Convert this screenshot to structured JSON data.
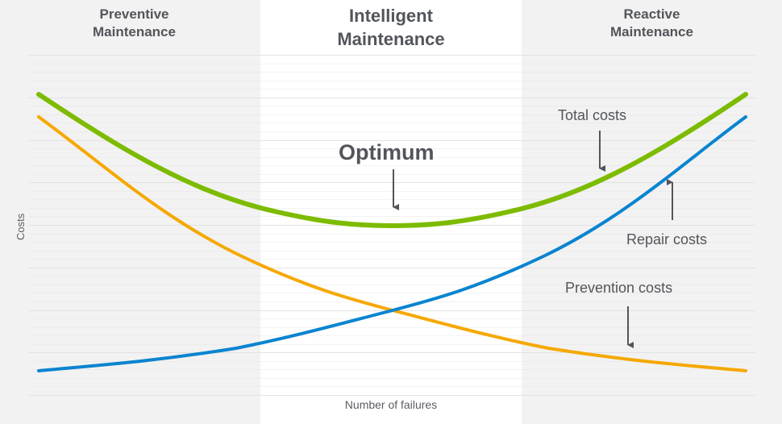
{
  "zones": [
    {
      "id": "preventive",
      "title_line1": "Preventive",
      "title_line2": "Maintenance"
    },
    {
      "id": "intelligent",
      "title_line1": "Intelligent",
      "title_line2": "Maintenance"
    },
    {
      "id": "reactive",
      "title_line1": "Reactive",
      "title_line2": "Maintenance"
    }
  ],
  "annotations": {
    "optimum": "Optimum",
    "total_costs": "Total costs",
    "repair_costs": "Repair costs",
    "prevention_costs": "Prevention costs"
  },
  "axes": {
    "x_label": "Number of failures",
    "y_label": "Costs"
  },
  "colors": {
    "total": "#7dbb00",
    "prevention": "#f5a800",
    "repair": "#0a84d0",
    "text": "#52555a",
    "zone_gray": "#f2f2f2",
    "zone_white": "#ffffff"
  },
  "chart_data": {
    "type": "line",
    "title": "",
    "xlabel": "Number of failures",
    "ylabel": "Costs",
    "x": [
      0,
      1,
      2,
      3,
      4,
      5,
      6,
      7,
      8,
      9,
      10
    ],
    "series": [
      {
        "name": "Total costs",
        "values": [
          65,
          54,
          44,
          37,
          32,
          31,
          32,
          37,
          44,
          54,
          65
        ]
      },
      {
        "name": "Prevention costs",
        "values": [
          60,
          46,
          34,
          25,
          18,
          14,
          11,
          8,
          6,
          4,
          3
        ]
      },
      {
        "name": "Repair costs",
        "values": [
          3,
          4,
          6,
          8,
          11,
          14,
          18,
          25,
          34,
          46,
          60
        ]
      }
    ],
    "regions": [
      "Preventive Maintenance",
      "Intelligent Maintenance",
      "Reactive Maintenance"
    ],
    "annotations": [
      "Optimum",
      "Total costs",
      "Repair costs",
      "Prevention costs"
    ],
    "grid": true,
    "legend": "none (inline labels with arrows)"
  }
}
